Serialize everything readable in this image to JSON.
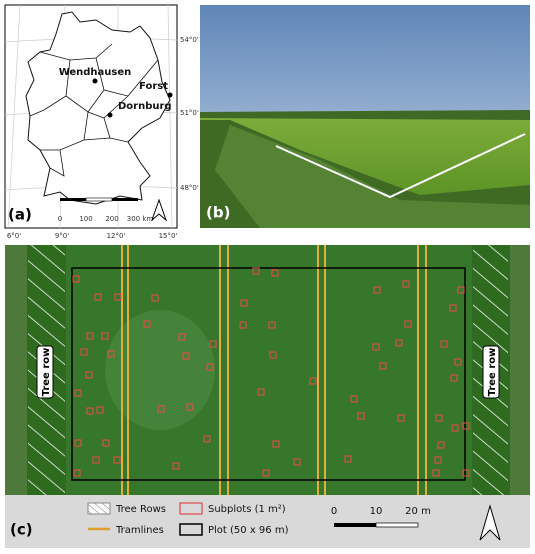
{
  "panel_a": {
    "label": "(a)",
    "lat_labels": [
      "54°0'",
      "51°0'",
      "48°0'"
    ],
    "lon_labels": [
      "6°0'",
      "9°0'",
      "12°0'",
      "15°0'"
    ],
    "sites": [
      "Wendhausen",
      "Forst",
      "Dornburg"
    ],
    "scale": [
      "0",
      "100",
      "200",
      "300 km"
    ]
  },
  "panel_b": {
    "label": "(b)"
  },
  "panel_c": {
    "label": "(c)",
    "tree_row_labels": [
      "Tree row",
      "Tree row"
    ],
    "legend": [
      "Tree Rows",
      "Subplots (1 m²)",
      "Tramlines",
      "Plot (50 x 96 m)"
    ],
    "scale": [
      "0",
      "10",
      "20 m"
    ]
  }
}
